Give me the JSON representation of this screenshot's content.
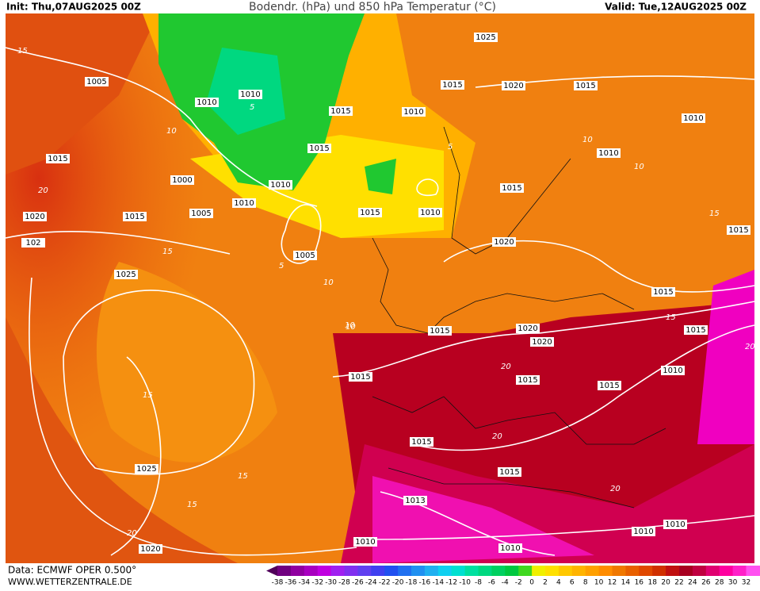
{
  "header": {
    "init": "Init: Thu,07AUG2025 00Z",
    "title": "Bodendr. (hPa) und 850 hPa Temperatur (°C)",
    "valid": "Valid: Tue,12AUG2025 00Z"
  },
  "footer": {
    "source": "Data: ECMWF OPER 0.500°",
    "site": "WWW.WETTERZENTRALE.DE"
  },
  "colorbar": {
    "labels": [
      -38,
      -36,
      -34,
      -32,
      -30,
      -28,
      -26,
      -24,
      -22,
      -20,
      -18,
      -16,
      -14,
      -12,
      -10,
      -8,
      -6,
      -4,
      -2,
      0,
      2,
      4,
      6,
      8,
      10,
      12,
      14,
      16,
      18,
      20,
      22,
      24,
      26,
      28,
      30,
      32
    ],
    "colors": [
      "#50005a",
      "#700080",
      "#9000a0",
      "#a800c0",
      "#c000e0",
      "#a020f0",
      "#8030f0",
      "#6040f0",
      "#4040f0",
      "#2050f0",
      "#2070f0",
      "#2090f0",
      "#20b0f0",
      "#10d0f0",
      "#00e0d0",
      "#00e0a0",
      "#00d880",
      "#00d060",
      "#00c840",
      "#40d820",
      "#f0f000",
      "#ffe000",
      "#ffc800",
      "#ffb400",
      "#ffa000",
      "#ff8c00",
      "#f07800",
      "#e86000",
      "#e04800",
      "#d03000",
      "#c01010",
      "#a80020",
      "#c00040",
      "#e00070",
      "#ff00a0",
      "#ff20c8",
      "#ff50f0"
    ]
  },
  "isobar_labels": [
    1025,
    1015,
    1020,
    1015,
    1005,
    1010,
    1010,
    1015,
    1010,
    1010,
    1015,
    1015,
    1010,
    1000,
    1010,
    1015,
    1010,
    1005,
    1020,
    1015,
    1015,
    1010,
    1015,
    102,
    1020,
    1025,
    1005,
    1015,
    1015,
    1020,
    1015,
    1020,
    1010,
    1015,
    1015,
    1015,
    1015,
    1025,
    1015,
    1013,
    1020,
    1010,
    1010,
    1010,
    1010
  ],
  "temp_labels": [
    15,
    10,
    5,
    5,
    10,
    20,
    15,
    10,
    5,
    10,
    10,
    15,
    15,
    15,
    20,
    20,
    20,
    15,
    20,
    15,
    10,
    20
  ]
}
